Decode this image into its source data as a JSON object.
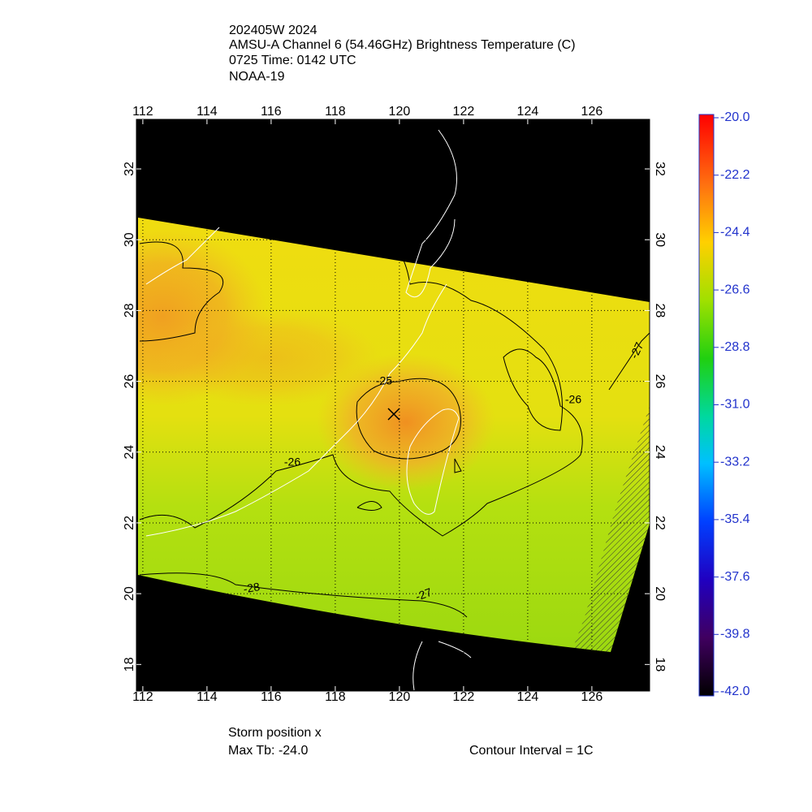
{
  "header": {
    "lines": [
      "202405W 2024",
      "AMSU-A Channel 6 (54.46GHz) Brightness Temperature (C)",
      "0725 Time: 0142 UTC",
      "NOAA-19"
    ]
  },
  "map": {
    "lon_range": [
      111.8,
      127.8
    ],
    "lat_range": [
      17.25,
      33.4
    ],
    "lon_ticks": [
      112,
      114,
      116,
      118,
      120,
      122,
      124,
      126
    ],
    "lat_ticks": [
      18,
      20,
      22,
      24,
      26,
      28,
      30,
      32
    ],
    "contour_labels": [
      "-25",
      "-26",
      "-26",
      "-27",
      "-27",
      "-28"
    ]
  },
  "colorbar": {
    "range": [
      -42,
      -20
    ],
    "ticks": [
      {
        "value": -20,
        "label": "-20.0"
      },
      {
        "value": -22.2,
        "label": "-22.2"
      },
      {
        "value": -24.4,
        "label": "-24.4"
      },
      {
        "value": -26.6,
        "label": "-26.6"
      },
      {
        "value": -28.8,
        "label": "-28.8"
      },
      {
        "value": -31,
        "label": "-31.0"
      },
      {
        "value": -33.2,
        "label": "-33.2"
      },
      {
        "value": -35.4,
        "label": "-35.4"
      },
      {
        "value": -37.6,
        "label": "-37.6"
      },
      {
        "value": -39.8,
        "label": "-39.8"
      },
      {
        "value": -42,
        "label": "-42.0"
      }
    ]
  },
  "footer": {
    "storm": "Storm position x",
    "max_tb": "Max Tb: -24.0",
    "interval": "Contour Interval = 1C"
  }
}
